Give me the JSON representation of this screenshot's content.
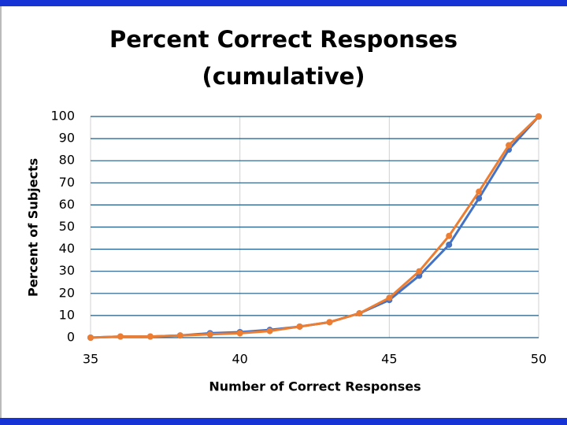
{
  "chart_data": {
    "type": "line",
    "title": "Percent Correct Responses",
    "subtitle": "(cumulative)",
    "x_label": "Number of Correct Responses",
    "y_label": "Percent of Subjects",
    "x": [
      35,
      36,
      37,
      38,
      39,
      40,
      41,
      42,
      43,
      44,
      45,
      46,
      47,
      48,
      49,
      50
    ],
    "series": [
      {
        "color": "#4472c4",
        "values": [
          0,
          0.5,
          0.5,
          1,
          2,
          2.5,
          3.5,
          5,
          7,
          11,
          17,
          28,
          42,
          63,
          85,
          100
        ]
      },
      {
        "color": "#ed7d31",
        "values": [
          0,
          0.5,
          0.5,
          1,
          1.5,
          2,
          3,
          5,
          7,
          11,
          18,
          30,
          46,
          66,
          87,
          100
        ]
      }
    ],
    "xlim": [
      35,
      50
    ],
    "xticks": [
      35,
      40,
      45,
      50
    ],
    "ylim": [
      0,
      100
    ],
    "yticks": [
      0,
      10,
      20,
      30,
      40,
      50,
      60,
      70,
      80,
      90,
      100
    ],
    "grid": true
  }
}
